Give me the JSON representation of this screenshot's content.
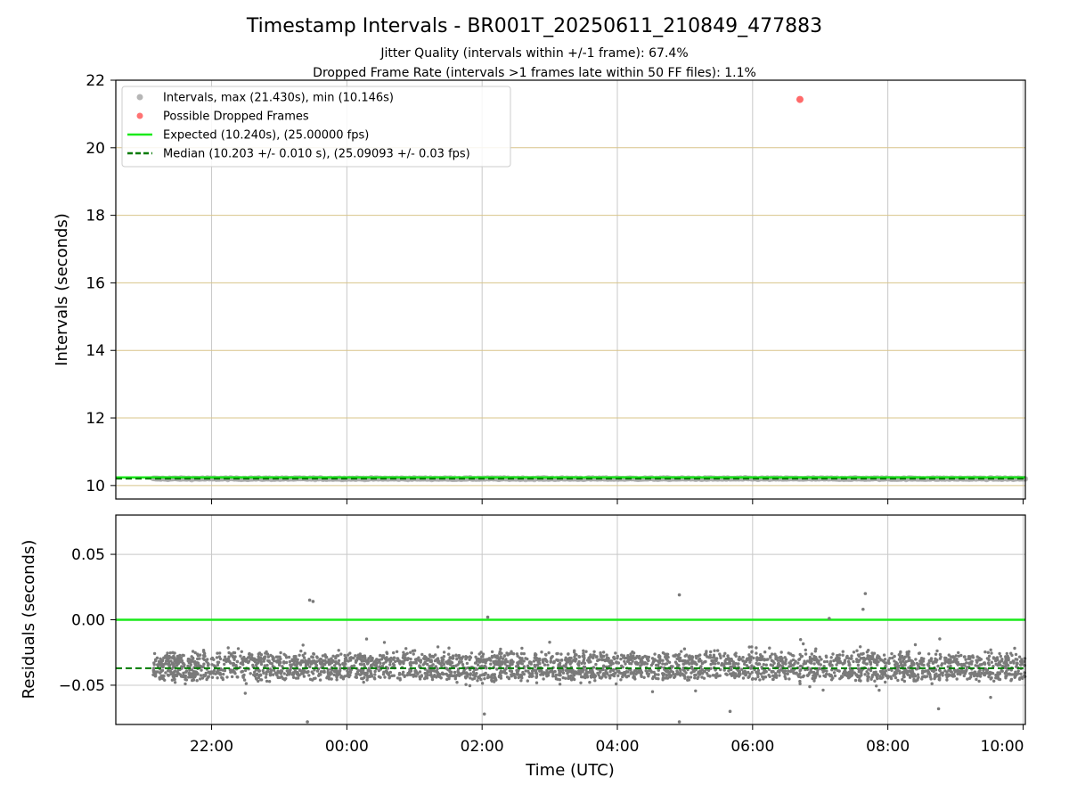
{
  "figure": {
    "title": "Timestamp Intervals - BR001T_20250611_210849_477883",
    "subtitle_1": "Jitter Quality (intervals within +/-1 frame): 67.4%",
    "subtitle_2": "Dropped Frame Rate (intervals >1 frames late within 50 FF files): 1.1%",
    "xlabel": "Time (UTC)"
  },
  "colors": {
    "intervals": "#a9a9a9",
    "dropped": "#ff5a5a",
    "expected": "#1aea1a",
    "median": "#007a00",
    "residual_points": "#7a7a7a",
    "ygrid_top": "#d8c48a",
    "grid": "#c8c8c8"
  },
  "chart_data": [
    {
      "type": "scatter",
      "panel": "intervals",
      "ylabel": "Intervals (seconds)",
      "ylim": [
        9.6,
        22
      ],
      "yticks": [
        10,
        12,
        14,
        16,
        18,
        20,
        22
      ],
      "xlim": [
        "20:35",
        "10:02"
      ],
      "xticks": [
        "22:00",
        "00:00",
        "02:00",
        "04:00",
        "06:00",
        "08:00",
        "10:00"
      ],
      "grid": "on",
      "legend_position": "upper-left",
      "legend": [
        {
          "label": "Intervals, max (21.430s), min (10.146s)",
          "marker": "point",
          "color": "#a9a9a9"
        },
        {
          "label": "Possible Dropped Frames",
          "marker": "point",
          "color": "#ff5a5a"
        },
        {
          "label": "Expected (10.240s), (25.00000 fps)",
          "marker": "line",
          "color": "#1aea1a"
        },
        {
          "label": "Median (10.203 +/- 0.010 s), (25.09093 +/- 0.03 fps)",
          "marker": "dashed",
          "color": "#007a00"
        }
      ],
      "series": [
        {
          "name": "Intervals, max (21.430s), min (10.146s)",
          "x_range": [
            "21:08",
            "10:02"
          ],
          "y_min": 10.146,
          "y_max": 21.43,
          "y_typical": 10.203
        },
        {
          "name": "Possible Dropped Frames",
          "points": [
            {
              "x": "06:42",
              "y": 21.43
            }
          ]
        },
        {
          "name": "Expected (10.240s), (25.00000 fps)",
          "y": 10.24
        },
        {
          "name": "Median (10.203 +/- 0.010 s), (25.09093 +/- 0.03 fps)",
          "y": 10.203
        }
      ]
    },
    {
      "type": "scatter",
      "panel": "residuals",
      "ylabel": "Residuals (seconds)",
      "ylim": [
        -0.08,
        0.08
      ],
      "yticks": [
        "0.05",
        "0.00",
        "−0.05"
      ],
      "ytick_values": [
        0.05,
        0.0,
        -0.05
      ],
      "xlim": [
        "20:35",
        "10:02"
      ],
      "xticks": [
        "22:00",
        "00:00",
        "02:00",
        "04:00",
        "06:00",
        "08:00",
        "10:00"
      ],
      "grid": "on",
      "series": [
        {
          "name": "Residuals",
          "x_range": [
            "21:08",
            "10:02"
          ],
          "y_center": -0.035,
          "y_spread": 0.025,
          "y_max": 0.02,
          "y_min": -0.08
        },
        {
          "name": "Expected",
          "y": 0.0
        },
        {
          "name": "Median",
          "y": -0.037
        }
      ],
      "outliers": [
        {
          "x": "23:27",
          "y": 0.015
        },
        {
          "x": "23:30",
          "y": 0.014
        },
        {
          "x": "02:05",
          "y": 0.002
        },
        {
          "x": "04:55",
          "y": 0.019
        },
        {
          "x": "07:08",
          "y": 0.001
        },
        {
          "x": "07:40",
          "y": 0.02
        },
        {
          "x": "07:38",
          "y": 0.008
        },
        {
          "x": "23:25",
          "y": -0.078
        },
        {
          "x": "02:02",
          "y": -0.072
        },
        {
          "x": "04:55",
          "y": -0.078
        },
        {
          "x": "05:40",
          "y": -0.07
        },
        {
          "x": "08:45",
          "y": -0.068
        }
      ]
    }
  ]
}
